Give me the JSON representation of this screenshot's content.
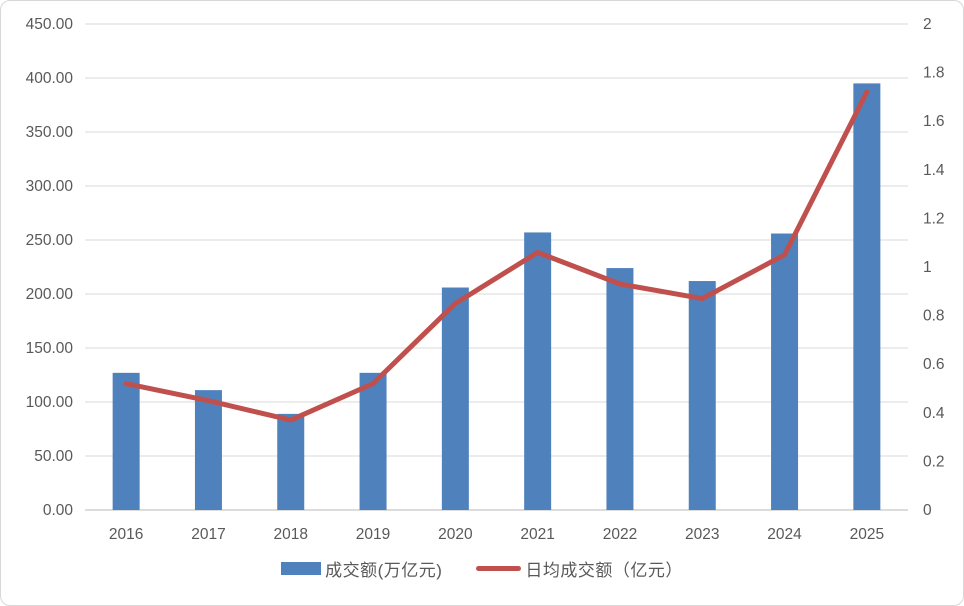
{
  "chart_data": {
    "type": "combo-bar-line",
    "title": "",
    "categories": [
      "2016",
      "2017",
      "2018",
      "2019",
      "2020",
      "2021",
      "2022",
      "2023",
      "2024",
      "2025"
    ],
    "series": [
      {
        "name": "成交额(万亿元)",
        "type": "bar",
        "axis": "left",
        "color": "#4F81BD",
        "values": [
          127,
          111,
          89,
          127,
          206,
          257,
          224,
          212,
          256,
          395
        ]
      },
      {
        "name": "日均成交额（亿元）",
        "type": "line",
        "axis": "right",
        "color": "#C0504D",
        "values": [
          0.52,
          0.45,
          0.37,
          0.52,
          0.85,
          1.06,
          0.93,
          0.87,
          1.05,
          1.72
        ]
      }
    ],
    "left_axis": {
      "min": 0,
      "max": 450,
      "step": 50,
      "tick_labels": [
        "0.00",
        "50.00",
        "100.00",
        "150.00",
        "200.00",
        "250.00",
        "300.00",
        "350.00",
        "400.00",
        "450.00"
      ]
    },
    "right_axis": {
      "min": 0,
      "max": 2,
      "step": 0.2,
      "tick_labels": [
        "0",
        "0.2",
        "0.4",
        "0.6",
        "0.8",
        "1",
        "1.2",
        "1.4",
        "1.6",
        "1.8",
        "2"
      ]
    },
    "grid": true,
    "legend_position": "bottom"
  },
  "legend": {
    "bar_label": "成交额(万亿元)",
    "line_label": "日均成交额（亿元）"
  },
  "colors": {
    "bar": "#4F81BD",
    "line": "#C0504D",
    "grid": "#D9D9D9",
    "axis_line": "#C6C6C6",
    "tick_text": "#595959",
    "border": "#D8D8D8",
    "background": "#FFFFFF"
  }
}
